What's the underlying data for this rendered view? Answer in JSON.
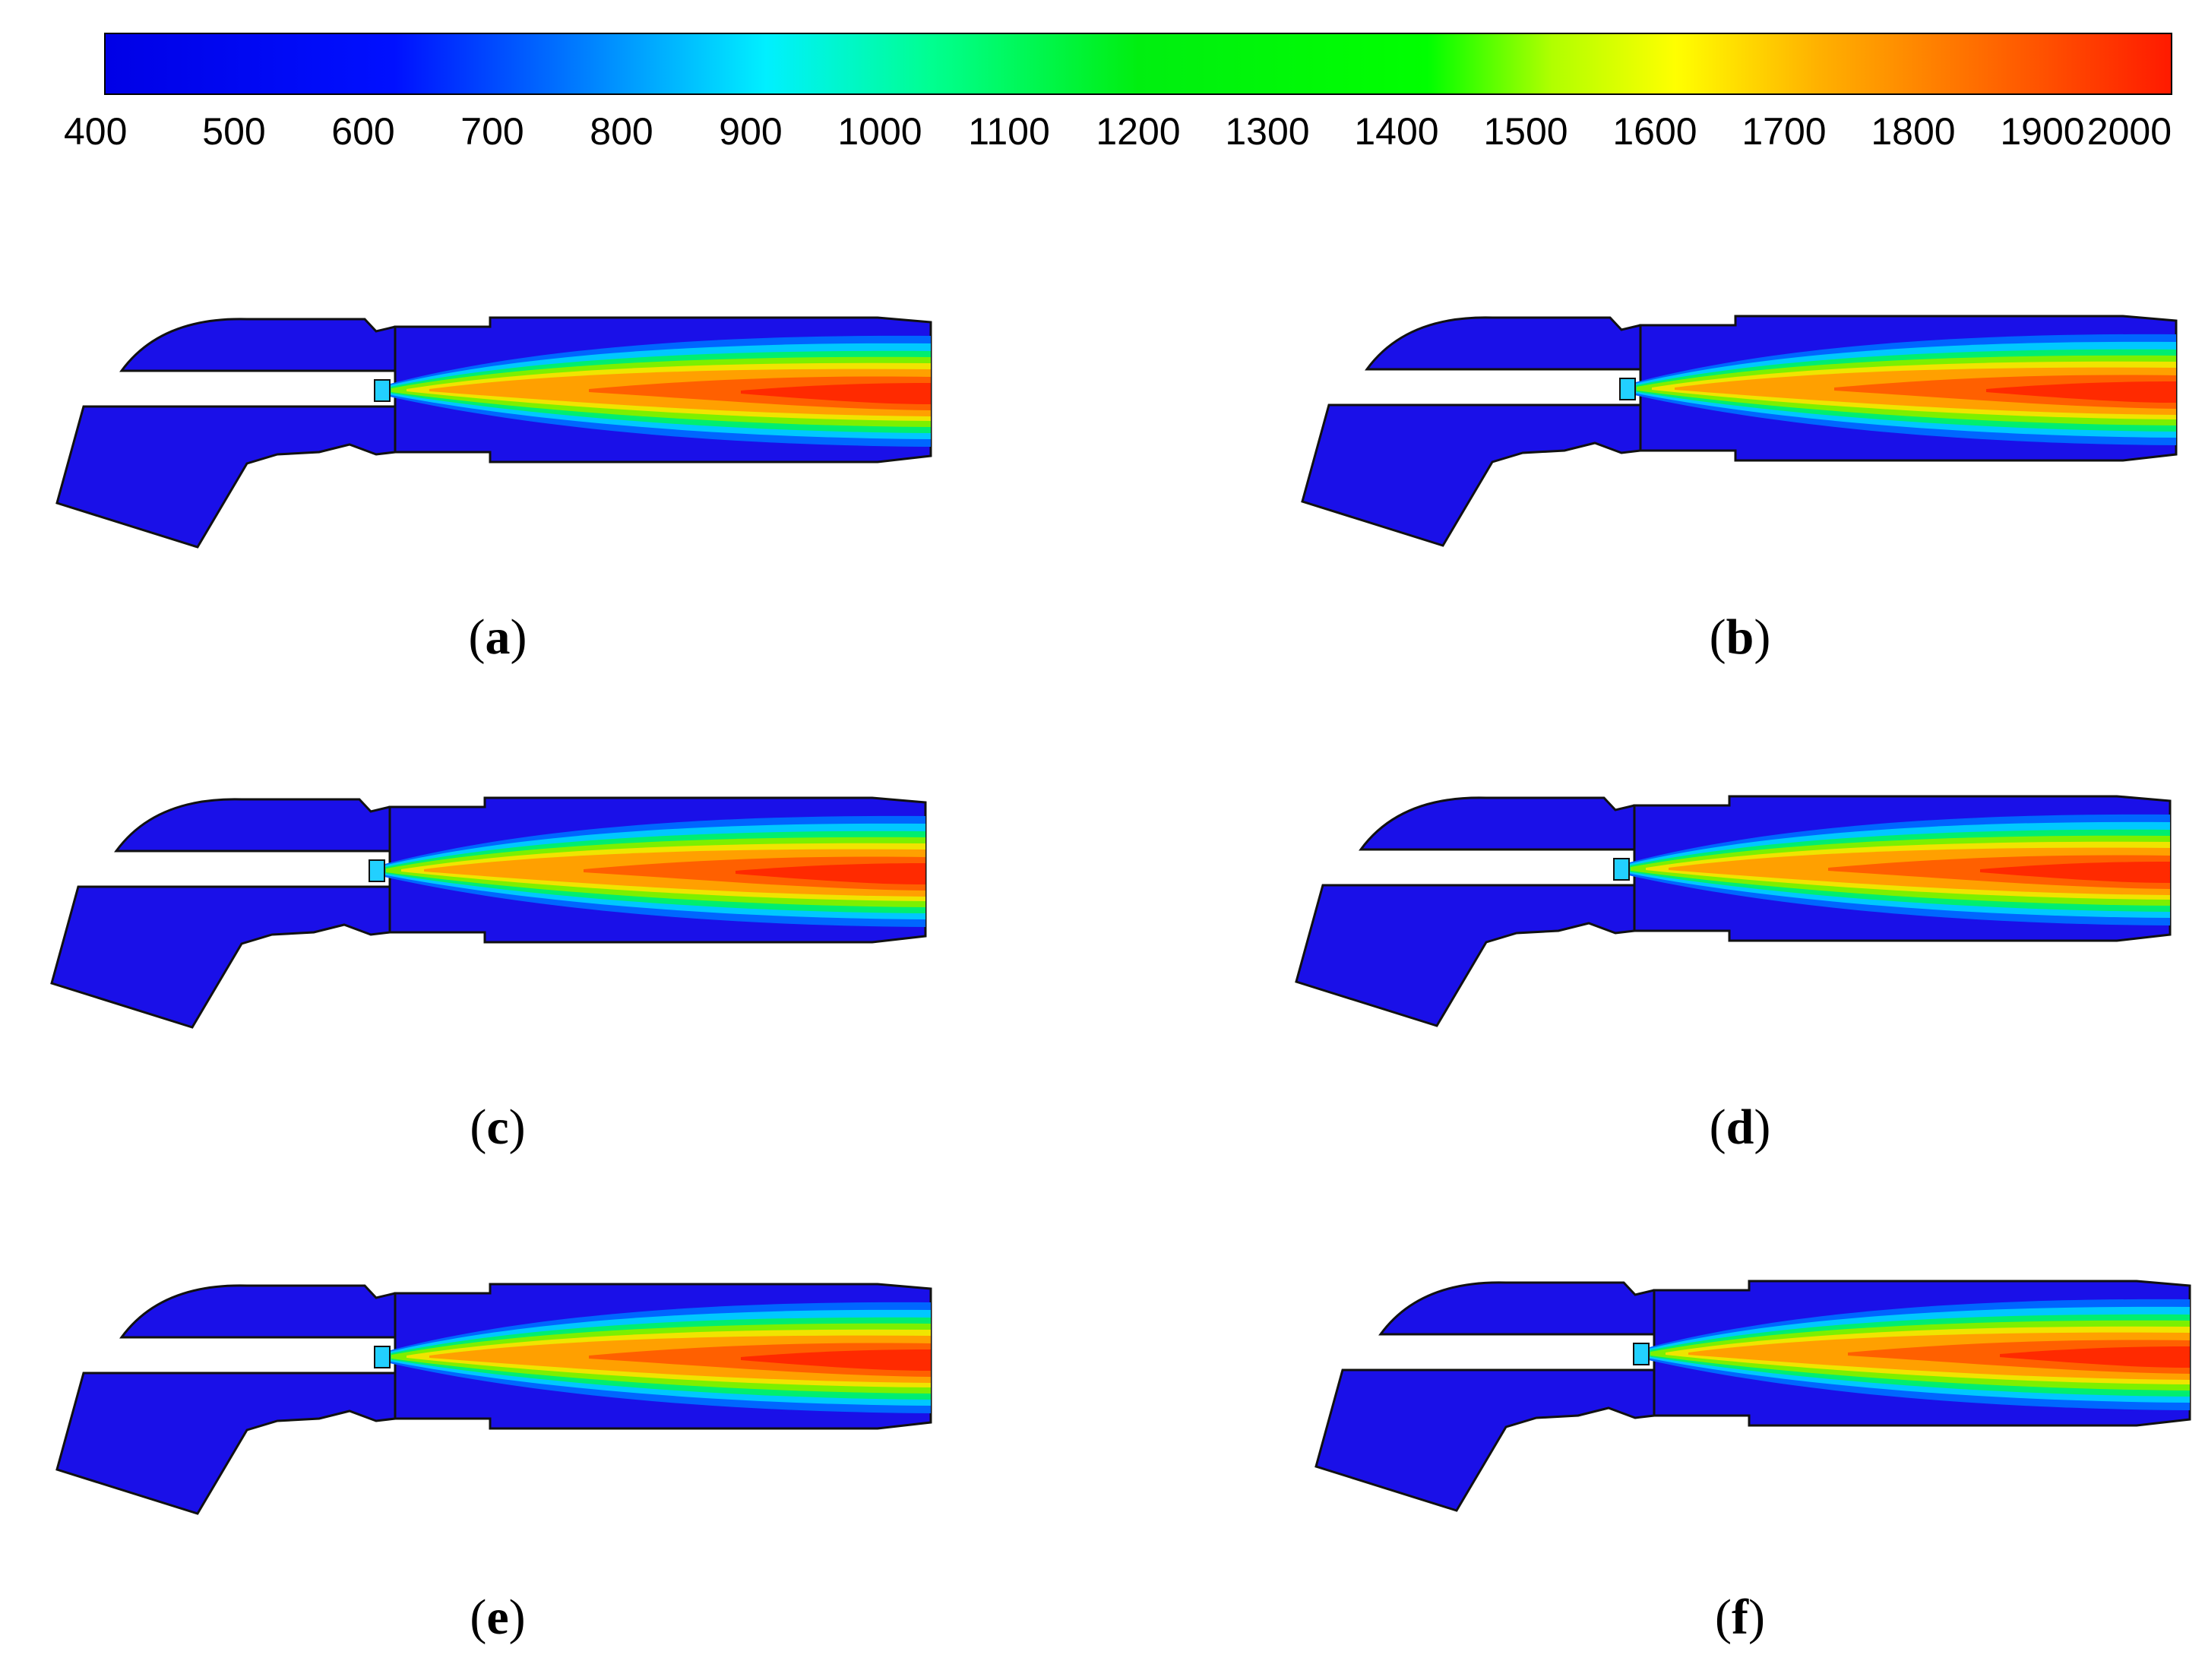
{
  "colorbar": {
    "ticks": [
      "400",
      "500",
      "600",
      "700",
      "800",
      "900",
      "1000",
      "1100",
      "1200",
      "1300",
      "1400",
      "1500",
      "1600",
      "1700",
      "1800",
      "1900",
      "2000"
    ],
    "min": 400,
    "max": 2000,
    "colors": {
      "low": "#0000ff",
      "mid_low": "#00ffff",
      "mid": "#00ff00",
      "mid_high": "#ffff00",
      "high_mid": "#ffa500",
      "high": "#ff0000"
    }
  },
  "panels": [
    {
      "id": "a",
      "label_open": "(",
      "label_letter": "a",
      "label_close": ")"
    },
    {
      "id": "b",
      "label_open": "(",
      "label_letter": "b",
      "label_close": ")"
    },
    {
      "id": "c",
      "label_open": "(",
      "label_letter": "c",
      "label_close": ")"
    },
    {
      "id": "d",
      "label_open": "(",
      "label_letter": "d",
      "label_close": ")"
    },
    {
      "id": "e",
      "label_open": "(",
      "label_letter": "e",
      "label_close": ")"
    },
    {
      "id": "f",
      "label_open": "(",
      "label_letter": "f",
      "label_close": ")"
    }
  ]
}
